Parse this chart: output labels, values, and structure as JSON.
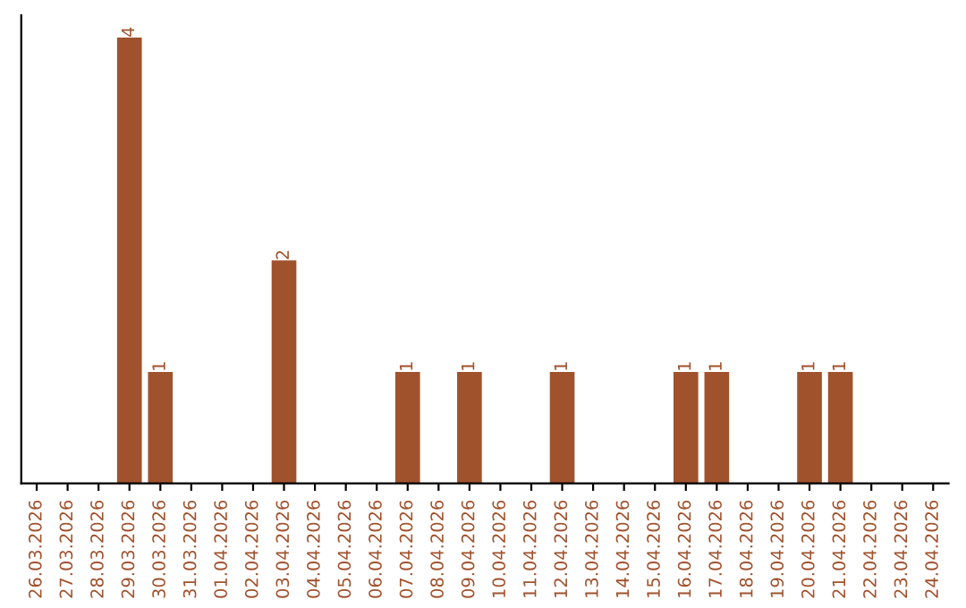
{
  "chart_data": {
    "type": "bar",
    "categories": [
      "26.03.2026",
      "27.03.2026",
      "28.03.2026",
      "29.03.2026",
      "30.03.2026",
      "31.03.2026",
      "01.04.2026",
      "02.04.2026",
      "03.04.2026",
      "04.04.2026",
      "05.04.2026",
      "06.04.2026",
      "07.04.2026",
      "08.04.2026",
      "09.04.2026",
      "10.04.2026",
      "11.04.2026",
      "12.04.2026",
      "13.04.2026",
      "14.04.2026",
      "15.04.2026",
      "16.04.2026",
      "17.04.2026",
      "18.04.2026",
      "19.04.2026",
      "20.04.2026",
      "21.04.2026",
      "22.04.2026",
      "23.04.2026",
      "24.04.2026"
    ],
    "values": [
      0,
      0,
      0,
      4,
      1,
      0,
      0,
      0,
      2,
      0,
      0,
      0,
      1,
      0,
      1,
      0,
      0,
      1,
      0,
      0,
      0,
      1,
      1,
      0,
      0,
      1,
      1,
      0,
      0,
      0
    ],
    "value_labels": [
      null,
      null,
      null,
      "4",
      "1",
      null,
      null,
      null,
      "2",
      null,
      null,
      null,
      "1",
      null,
      "1",
      null,
      null,
      "1",
      null,
      null,
      null,
      "1",
      "1",
      null,
      null,
      "1",
      "1",
      null,
      null,
      null
    ],
    "color": "#a0522d",
    "tick_labels": "x",
    "grid": false,
    "legend": false
  }
}
